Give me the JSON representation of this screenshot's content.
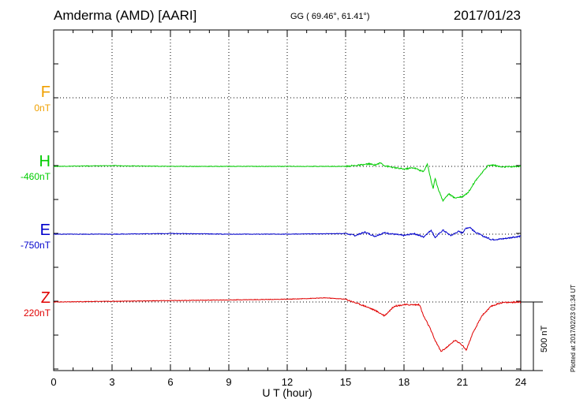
{
  "header": {
    "station": "Amderma (AMD)  [AARI]",
    "coords": "GG ( 69.46°,  61.41°)",
    "date": "2017/01/23"
  },
  "components": [
    {
      "letter": "F",
      "base": "0nT",
      "color": "#f0a000"
    },
    {
      "letter": "H",
      "base": "-460nT",
      "color": "#00cc00"
    },
    {
      "letter": "E",
      "base": "-750nT",
      "color": "#0000cc"
    },
    {
      "letter": "Z",
      "base": "220nT",
      "color": "#e00000"
    }
  ],
  "scale_bar_label": "500 nT",
  "plotted_note": "Plotted at 2017/02/23 01:34 UT",
  "chart_data": {
    "type": "line",
    "title": "Amderma (AMD)  [AARI]",
    "xlabel": "U T (hour)",
    "xlim": [
      0,
      24
    ],
    "xticks": [
      0,
      3,
      6,
      9,
      12,
      15,
      18,
      21,
      24
    ],
    "grid": true,
    "ylabel": "",
    "series": [
      {
        "name": "F",
        "baseline_nT": 0,
        "x": [],
        "values": []
      },
      {
        "name": "H",
        "baseline_nT": -460,
        "x": [
          0,
          3,
          6,
          9,
          12,
          15,
          15.8,
          16.2,
          16.5,
          16.8,
          17,
          17.5,
          18,
          18.5,
          19,
          19.2,
          19.4,
          19.5,
          19.6,
          19.8,
          20,
          20.3,
          20.6,
          21,
          21.3,
          21.6,
          21.8,
          22,
          22.3,
          22.6,
          23,
          24
        ],
        "values": [
          0,
          5,
          0,
          0,
          0,
          0,
          10,
          18,
          10,
          25,
          5,
          -10,
          -20,
          -10,
          -40,
          20,
          -110,
          -160,
          -90,
          -180,
          -250,
          -200,
          -230,
          -220,
          -190,
          -120,
          -80,
          -50,
          5,
          10,
          -5,
          0
        ]
      },
      {
        "name": "E",
        "baseline_nT": -750,
        "x": [
          0,
          3,
          6,
          9,
          12,
          15,
          15.5,
          16,
          16.5,
          17,
          18,
          18.5,
          19,
          19.4,
          19.6,
          20,
          20.4,
          20.8,
          21,
          21.2,
          21.4,
          21.6,
          22,
          22.5,
          23,
          24
        ],
        "values": [
          0,
          0,
          5,
          0,
          0,
          5,
          -10,
          15,
          -15,
          10,
          -10,
          5,
          -20,
          30,
          -25,
          30,
          -10,
          20,
          10,
          45,
          50,
          20,
          -10,
          -40,
          -35,
          -15
        ]
      },
      {
        "name": "Z",
        "baseline_nT": 220,
        "x": [
          0,
          3,
          6,
          9,
          12,
          14,
          15,
          16,
          16.5,
          17,
          17.5,
          18,
          18.8,
          19,
          19.3,
          19.6,
          19.9,
          20.3,
          20.6,
          20.9,
          21.2,
          21.5,
          22,
          22.5,
          23,
          24
        ],
        "values": [
          0,
          5,
          10,
          15,
          20,
          30,
          20,
          -30,
          -60,
          -100,
          -30,
          -20,
          -20,
          -100,
          -180,
          -280,
          -360,
          -320,
          -280,
          -300,
          -350,
          -240,
          -100,
          -30,
          -5,
          0
        ]
      }
    ]
  }
}
